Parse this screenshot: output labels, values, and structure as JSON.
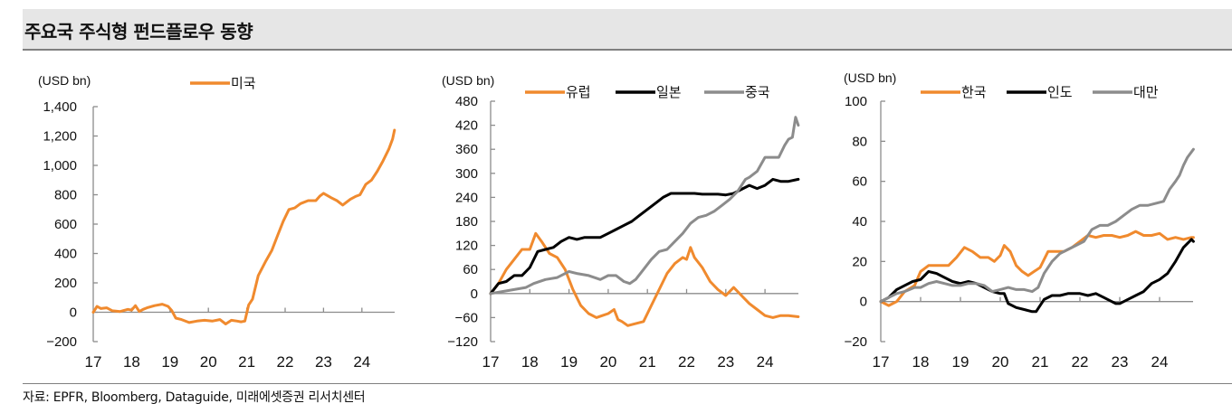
{
  "title": "주요국 주식형 펀드플로우 동향",
  "source": "자료: EPFR, Bloomberg, Dataguide, 미래에셋증권 리서치센터",
  "colors": {
    "orange": "#F08A2E",
    "black": "#000000",
    "gray": "#8C8C8C"
  },
  "chart_data": [
    {
      "type": "line",
      "unit_label": "(USD bn)",
      "xlabel": "",
      "ylabel": "USD bn",
      "x_ticks": [
        "17",
        "18",
        "19",
        "20",
        "21",
        "22",
        "23",
        "24"
      ],
      "x_tick_values": [
        2017,
        2018,
        2019,
        2020,
        2021,
        2022,
        2023,
        2024
      ],
      "xlim": [
        2017,
        2024.85
      ],
      "y_ticks": [
        "1,400",
        "1,200",
        "1,000",
        "800",
        "600",
        "400",
        "200",
        "0",
        "−200"
      ],
      "y_tick_values": [
        1400,
        1200,
        1000,
        800,
        600,
        400,
        200,
        0,
        -200
      ],
      "ylim": [
        -200,
        1400
      ],
      "legend_position": "top-center",
      "series": [
        {
          "name": "미국",
          "color": "#F08A2E",
          "x": [
            2017.0,
            2017.1,
            2017.2,
            2017.35,
            2017.5,
            2017.7,
            2017.9,
            2018.0,
            2018.1,
            2018.2,
            2018.3,
            2018.4,
            2018.6,
            2018.8,
            2018.95,
            2019.05,
            2019.15,
            2019.3,
            2019.5,
            2019.7,
            2019.9,
            2020.1,
            2020.3,
            2020.45,
            2020.6,
            2020.75,
            2020.85,
            2020.95,
            2021.05,
            2021.15,
            2021.3,
            2021.5,
            2021.65,
            2021.8,
            2021.95,
            2022.1,
            2022.25,
            2022.4,
            2022.6,
            2022.8,
            2022.9,
            2023.0,
            2023.2,
            2023.35,
            2023.5,
            2023.7,
            2023.85,
            2023.95,
            2024.1,
            2024.25,
            2024.4,
            2024.55,
            2024.7,
            2024.8,
            2024.85
          ],
          "values": [
            0,
            40,
            25,
            30,
            10,
            5,
            20,
            15,
            45,
            5,
            20,
            30,
            45,
            55,
            40,
            10,
            -40,
            -50,
            -70,
            -60,
            -55,
            -60,
            -50,
            -80,
            -55,
            -60,
            -65,
            -60,
            50,
            90,
            250,
            350,
            420,
            520,
            620,
            700,
            710,
            740,
            760,
            760,
            790,
            810,
            780,
            760,
            730,
            770,
            790,
            800,
            870,
            900,
            960,
            1030,
            1110,
            1180,
            1240
          ]
        }
      ]
    },
    {
      "type": "line",
      "unit_label": "(USD bn)",
      "xlabel": "",
      "ylabel": "USD bn",
      "x_ticks": [
        "17",
        "18",
        "19",
        "20",
        "21",
        "22",
        "23",
        "24"
      ],
      "x_tick_values": [
        2017,
        2018,
        2019,
        2020,
        2021,
        2022,
        2023,
        2024
      ],
      "xlim": [
        2017,
        2024.85
      ],
      "y_ticks": [
        "480",
        "420",
        "360",
        "300",
        "240",
        "180",
        "120",
        "60",
        "0",
        "−60",
        "−120"
      ],
      "y_tick_values": [
        480,
        420,
        360,
        300,
        240,
        180,
        120,
        60,
        0,
        -60,
        -120
      ],
      "ylim": [
        -120,
        480
      ],
      "legend_position": "top",
      "series": [
        {
          "name": "유럽",
          "color": "#F08A2E",
          "x": [
            2017.0,
            2017.2,
            2017.4,
            2017.6,
            2017.8,
            2018.0,
            2018.15,
            2018.3,
            2018.5,
            2018.7,
            2018.9,
            2019.1,
            2019.3,
            2019.5,
            2019.7,
            2019.85,
            2020.0,
            2020.15,
            2020.25,
            2020.35,
            2020.5,
            2020.7,
            2020.9,
            2021.1,
            2021.3,
            2021.5,
            2021.7,
            2021.9,
            2022.0,
            2022.1,
            2022.2,
            2022.4,
            2022.6,
            2022.8,
            2023.0,
            2023.2,
            2023.4,
            2023.6,
            2023.8,
            2024.0,
            2024.2,
            2024.4,
            2024.6,
            2024.85
          ],
          "values": [
            0,
            25,
            60,
            85,
            110,
            110,
            150,
            130,
            100,
            90,
            60,
            10,
            -30,
            -50,
            -60,
            -55,
            -50,
            -40,
            -65,
            -70,
            -80,
            -75,
            -70,
            -30,
            10,
            50,
            75,
            90,
            85,
            115,
            90,
            65,
            30,
            10,
            -5,
            15,
            -5,
            -25,
            -40,
            -55,
            -60,
            -55,
            -55,
            -58
          ]
        },
        {
          "name": "일본",
          "color": "#000000",
          "x": [
            2017.0,
            2017.2,
            2017.4,
            2017.6,
            2017.8,
            2018.0,
            2018.2,
            2018.4,
            2018.6,
            2018.8,
            2019.0,
            2019.2,
            2019.4,
            2019.6,
            2019.8,
            2020.0,
            2020.2,
            2020.4,
            2020.6,
            2020.8,
            2021.0,
            2021.2,
            2021.4,
            2021.6,
            2021.8,
            2022.0,
            2022.2,
            2022.4,
            2022.6,
            2022.8,
            2023.0,
            2023.2,
            2023.4,
            2023.6,
            2023.8,
            2024.0,
            2024.2,
            2024.4,
            2024.6,
            2024.85
          ],
          "values": [
            0,
            25,
            30,
            45,
            45,
            65,
            105,
            110,
            115,
            130,
            140,
            135,
            140,
            140,
            140,
            150,
            160,
            170,
            180,
            195,
            210,
            225,
            240,
            250,
            250,
            250,
            250,
            248,
            248,
            248,
            246,
            250,
            260,
            270,
            262,
            270,
            285,
            280,
            280,
            285
          ]
        },
        {
          "name": "중국",
          "color": "#8C8C8C",
          "x": [
            2017.0,
            2017.3,
            2017.6,
            2017.9,
            2018.1,
            2018.4,
            2018.7,
            2019.0,
            2019.2,
            2019.5,
            2019.8,
            2020.0,
            2020.2,
            2020.4,
            2020.55,
            2020.7,
            2020.9,
            2021.1,
            2021.3,
            2021.5,
            2021.7,
            2021.9,
            2022.1,
            2022.3,
            2022.5,
            2022.7,
            2022.9,
            2023.1,
            2023.3,
            2023.5,
            2023.6,
            2023.8,
            2024.0,
            2024.2,
            2024.35,
            2024.5,
            2024.6,
            2024.7,
            2024.78,
            2024.85
          ],
          "values": [
            0,
            5,
            10,
            15,
            25,
            35,
            40,
            55,
            50,
            45,
            35,
            45,
            45,
            30,
            25,
            35,
            60,
            85,
            105,
            110,
            130,
            150,
            175,
            190,
            195,
            205,
            220,
            235,
            255,
            285,
            290,
            305,
            340,
            340,
            340,
            370,
            385,
            390,
            440,
            420
          ]
        }
      ]
    },
    {
      "type": "line",
      "unit_label": "(USD bn)",
      "xlabel": "",
      "ylabel": "USD bn",
      "x_ticks": [
        "17",
        "18",
        "19",
        "20",
        "21",
        "22",
        "23",
        "24"
      ],
      "x_tick_values": [
        2017,
        2018,
        2019,
        2020,
        2021,
        2022,
        2023,
        2024
      ],
      "xlim": [
        2017,
        2024.85
      ],
      "y_ticks": [
        "100",
        "80",
        "60",
        "40",
        "20",
        "0",
        "−20"
      ],
      "y_tick_values": [
        100,
        80,
        60,
        40,
        20,
        0,
        -20
      ],
      "ylim": [
        -20,
        100
      ],
      "legend_position": "top",
      "series": [
        {
          "name": "한국",
          "color": "#F08A2E",
          "x": [
            2017.0,
            2017.2,
            2017.4,
            2017.6,
            2017.85,
            2018.0,
            2018.2,
            2018.5,
            2018.7,
            2018.9,
            2019.1,
            2019.3,
            2019.5,
            2019.7,
            2019.85,
            2020.0,
            2020.1,
            2020.25,
            2020.4,
            2020.55,
            2020.7,
            2020.85,
            2021.0,
            2021.2,
            2021.4,
            2021.6,
            2021.8,
            2022.0,
            2022.2,
            2022.4,
            2022.6,
            2022.8,
            2023.0,
            2023.2,
            2023.4,
            2023.6,
            2023.8,
            2024.0,
            2024.2,
            2024.4,
            2024.6,
            2024.8,
            2024.85
          ],
          "values": [
            0,
            -2,
            0,
            5,
            8,
            15,
            18,
            18,
            18,
            22,
            27,
            25,
            22,
            22,
            20,
            23,
            28,
            25,
            18,
            15,
            13,
            15,
            17,
            25,
            25,
            25,
            27,
            30,
            33,
            32,
            33,
            33,
            32,
            33,
            35,
            33,
            33,
            34,
            31,
            32,
            31,
            32,
            32
          ]
        },
        {
          "name": "인도",
          "color": "#000000",
          "x": [
            2017.0,
            2017.2,
            2017.4,
            2017.6,
            2017.8,
            2018.0,
            2018.2,
            2018.4,
            2018.6,
            2018.8,
            2019.0,
            2019.2,
            2019.4,
            2019.6,
            2019.8,
            2020.0,
            2020.1,
            2020.2,
            2020.4,
            2020.6,
            2020.8,
            2020.9,
            2021.1,
            2021.3,
            2021.5,
            2021.7,
            2021.9,
            2022.0,
            2022.2,
            2022.4,
            2022.6,
            2022.8,
            2022.9,
            2023.0,
            2023.2,
            2023.4,
            2023.6,
            2023.8,
            2024.0,
            2024.2,
            2024.4,
            2024.6,
            2024.8,
            2024.85
          ],
          "values": [
            0,
            2,
            6,
            8,
            10,
            11,
            15,
            14,
            12,
            10,
            9,
            10,
            9,
            7,
            5,
            4,
            4,
            -1,
            -3,
            -4,
            -5,
            -5,
            1,
            3,
            3,
            4,
            4,
            4,
            3,
            4,
            2,
            0,
            -1,
            -1,
            1,
            3,
            5,
            9,
            11,
            14,
            20,
            27,
            31,
            30
          ]
        },
        {
          "name": "대만",
          "color": "#8C8C8C",
          "x": [
            2017.0,
            2017.2,
            2017.4,
            2017.6,
            2017.85,
            2018.0,
            2018.2,
            2018.4,
            2018.6,
            2018.8,
            2019.0,
            2019.2,
            2019.4,
            2019.6,
            2019.8,
            2020.0,
            2020.2,
            2020.4,
            2020.6,
            2020.8,
            2020.95,
            2021.1,
            2021.3,
            2021.5,
            2021.7,
            2021.9,
            2022.1,
            2022.3,
            2022.5,
            2022.7,
            2022.9,
            2023.1,
            2023.3,
            2023.5,
            2023.7,
            2023.9,
            2024.1,
            2024.25,
            2024.4,
            2024.5,
            2024.6,
            2024.7,
            2024.85
          ],
          "values": [
            0,
            2,
            4,
            5,
            7,
            7,
            9,
            10,
            9,
            8,
            8,
            9,
            9,
            8,
            5,
            6,
            7,
            6,
            6,
            5,
            7,
            14,
            20,
            24,
            26,
            28,
            30,
            36,
            38,
            38,
            40,
            43,
            46,
            48,
            48,
            49,
            50,
            56,
            60,
            63,
            68,
            72,
            76
          ]
        }
      ]
    }
  ]
}
